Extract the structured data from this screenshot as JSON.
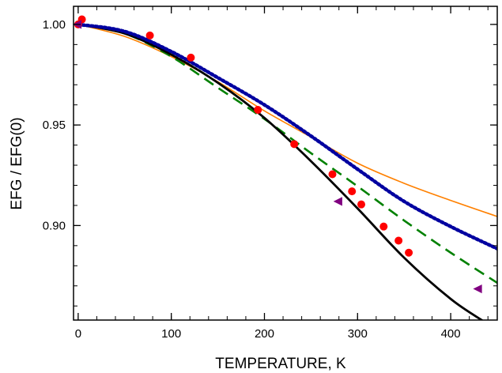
{
  "chart_data": {
    "type": "scatter",
    "title": "",
    "xlabel": "TEMPERATURE, K",
    "ylabel": "EFG / EFG(0)",
    "xlim": [
      -5,
      450
    ],
    "ylim": [
      0.853,
      1.009
    ],
    "x_ticks": [
      0,
      100,
      200,
      300,
      400
    ],
    "x_tick_labels": [
      "0",
      "100",
      "200",
      "300",
      "400"
    ],
    "x_minor_step": 20,
    "y_ticks": [
      0.9,
      0.95,
      1.0
    ],
    "y_tick_labels": [
      "0.90",
      "0.95",
      "1.00"
    ],
    "y_minor_step": 0.01,
    "grid": false,
    "legend": "none",
    "series": [
      {
        "kind": "points",
        "marker": "circle",
        "color": "#ff0000",
        "x": [
          0,
          4,
          77,
          121,
          193,
          232,
          273,
          294,
          304,
          328,
          344,
          355
        ],
        "y": [
          1.0,
          1.0025,
          0.9945,
          0.9835,
          0.9575,
          0.9405,
          0.9255,
          0.917,
          0.9105,
          0.8995,
          0.8925,
          0.8865
        ]
      },
      {
        "kind": "points",
        "marker": "triangle-left",
        "color": "#800080",
        "x": [
          0,
          280,
          430
        ],
        "y": [
          1.0,
          0.912,
          0.8685
        ]
      },
      {
        "kind": "line",
        "style": "solid",
        "color": "#000000",
        "x": [
          0,
          50,
          100,
          150,
          200,
          250,
          300,
          350,
          400,
          435
        ],
        "y": [
          1.0,
          0.9955,
          0.985,
          0.971,
          0.9535,
          0.932,
          0.9085,
          0.884,
          0.8635,
          0.8525
        ]
      },
      {
        "kind": "line",
        "style": "dashed",
        "color": "#008000",
        "x": [
          0,
          50,
          100,
          150,
          200,
          250,
          300,
          350,
          400,
          450
        ],
        "y": [
          1.0,
          0.9955,
          0.984,
          0.9685,
          0.953,
          0.936,
          0.9195,
          0.9025,
          0.8865,
          0.8715
        ]
      },
      {
        "kind": "line",
        "style": "dotted",
        "color": "#0000a0",
        "x": [
          0,
          50,
          100,
          150,
          200,
          250,
          300,
          350,
          400,
          450
        ],
        "y": [
          1.0,
          0.9965,
          0.9865,
          0.9735,
          0.96,
          0.9445,
          0.928,
          0.912,
          0.8995,
          0.8885
        ]
      },
      {
        "kind": "line",
        "style": "solid-thin",
        "color": "#ff8000",
        "x": [
          0,
          50,
          100,
          150,
          200,
          250,
          300,
          350,
          400,
          450
        ],
        "y": [
          1.0,
          0.994,
          0.984,
          0.9715,
          0.957,
          0.944,
          0.931,
          0.921,
          0.9125,
          0.9045
        ]
      }
    ]
  }
}
